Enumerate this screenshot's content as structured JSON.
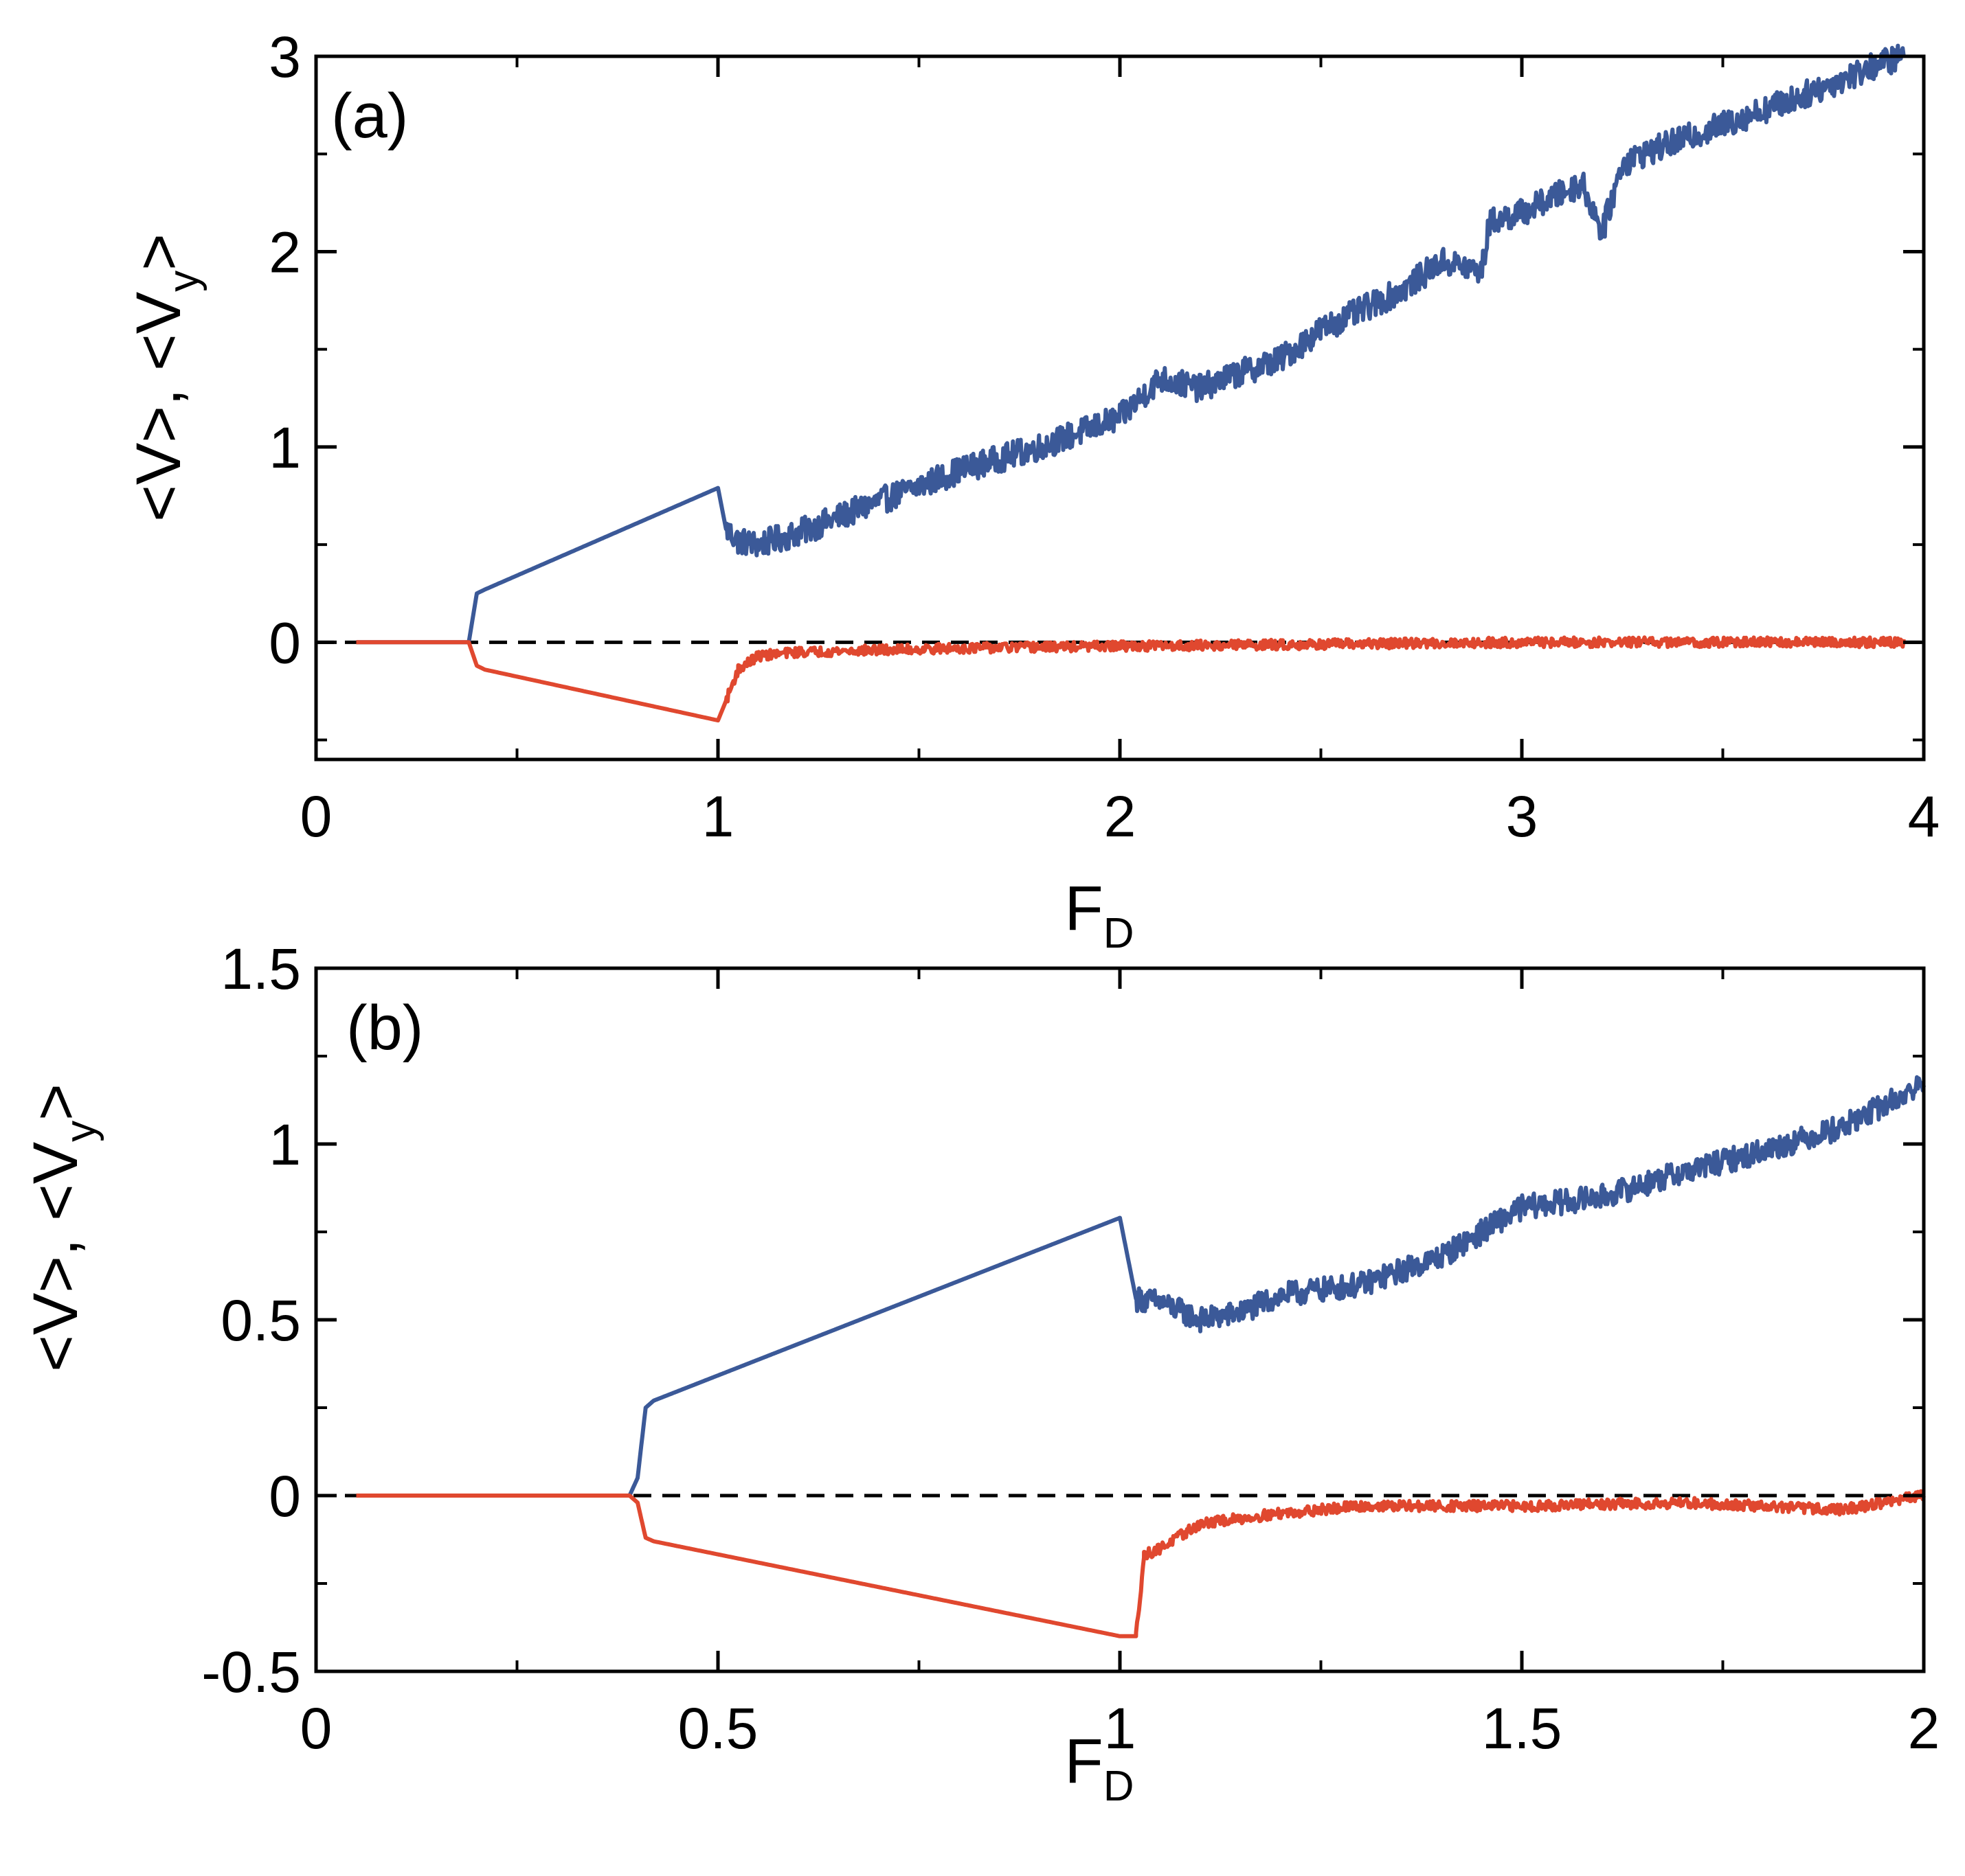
{
  "chart_data": [
    {
      "type": "line",
      "panel_label": "(a)",
      "xlabel": "F",
      "xlabel_sub": "D",
      "ylabel_parts": [
        "<V>, <V",
        "y",
        ">"
      ],
      "xlim": [
        0,
        4
      ],
      "ylim": [
        -0.6,
        3
      ],
      "x_ticks": [
        0,
        1,
        2,
        3,
        4
      ],
      "x_tick_labels": [
        "0",
        "1",
        "2",
        "3",
        "4"
      ],
      "x_minor_ticks": [
        0.5,
        1.5,
        2.5,
        3.5
      ],
      "y_ticks": [
        0,
        1,
        2,
        3
      ],
      "y_tick_labels": [
        "0",
        "1",
        "2",
        "3"
      ],
      "y_minor_ticks": [
        -0.5,
        0.5,
        1.5,
        2.5
      ],
      "reference_line": {
        "y": 0,
        "style": "dashed",
        "color": "#000000"
      },
      "series": [
        {
          "name": "<V>",
          "color": "#3b5998",
          "noisy_from_x": 1.02,
          "noise_amplitude": 0.07,
          "x": [
            0.1,
            0.38,
            0.4,
            0.42,
            1.0,
            1.02,
            1.05,
            1.1,
            1.2,
            1.4,
            1.6,
            1.8,
            2.0,
            2.1,
            2.2,
            2.3,
            2.4,
            2.5,
            2.6,
            2.7,
            2.8,
            2.9,
            2.92,
            3.0,
            3.1,
            3.15,
            3.2,
            3.25,
            3.3,
            3.5,
            3.7,
            3.9,
            3.95
          ],
          "y": [
            0.0,
            0.0,
            0.25,
            0.27,
            0.79,
            0.58,
            0.52,
            0.5,
            0.56,
            0.72,
            0.88,
            1.0,
            1.15,
            1.35,
            1.3,
            1.38,
            1.45,
            1.6,
            1.7,
            1.8,
            1.95,
            1.9,
            2.15,
            2.2,
            2.3,
            2.35,
            2.1,
            2.45,
            2.5,
            2.65,
            2.8,
            2.97,
            3.0
          ]
        },
        {
          "name": "<V_y>",
          "color": "#e0482f",
          "noisy_from_x": 1.02,
          "noise_amplitude": 0.025,
          "x": [
            0.1,
            0.38,
            0.4,
            0.42,
            1.0,
            1.02,
            1.05,
            1.1,
            1.2,
            1.4,
            1.6,
            2.0,
            2.5,
            3.0,
            3.5,
            3.95
          ],
          "y": [
            0.0,
            0.0,
            -0.12,
            -0.14,
            -0.4,
            -0.3,
            -0.14,
            -0.07,
            -0.05,
            -0.04,
            -0.03,
            -0.02,
            -0.01,
            0.0,
            0.0,
            0.0
          ]
        }
      ]
    },
    {
      "type": "line",
      "panel_label": "(b)",
      "xlabel": "F",
      "xlabel_sub": "D",
      "ylabel_parts": [
        "<V>, <V",
        "y",
        ">"
      ],
      "xlim": [
        0,
        2
      ],
      "ylim": [
        -0.5,
        1.5
      ],
      "x_ticks": [
        0,
        0.5,
        1,
        1.5,
        2
      ],
      "x_tick_labels": [
        "0",
        "0.5",
        "1",
        "1.5",
        "2"
      ],
      "x_minor_ticks": [
        0.25,
        0.75,
        1.25,
        1.75
      ],
      "y_ticks": [
        -0.5,
        0,
        0.5,
        1,
        1.5
      ],
      "y_tick_labels": [
        "-0.5",
        "0",
        "0.5",
        "1",
        "1.5"
      ],
      "y_minor_ticks": [
        -0.25,
        0.25,
        0.75,
        1.25
      ],
      "reference_line": {
        "y": 0,
        "style": "dashed",
        "color": "#000000"
      },
      "series": [
        {
          "name": "<V>",
          "color": "#3b5998",
          "noisy_from_x": 1.02,
          "noise_amplitude": 0.035,
          "x": [
            0.05,
            0.39,
            0.4,
            0.41,
            0.42,
            1.0,
            1.02,
            1.05,
            1.1,
            1.15,
            1.2,
            1.3,
            1.4,
            1.45,
            1.5,
            1.6,
            1.7,
            1.8,
            1.9,
            2.0
          ],
          "y": [
            0.0,
            0.0,
            0.05,
            0.25,
            0.27,
            0.79,
            0.56,
            0.55,
            0.5,
            0.52,
            0.57,
            0.6,
            0.68,
            0.75,
            0.82,
            0.85,
            0.92,
            0.98,
            1.05,
            1.17
          ]
        },
        {
          "name": "<V_y>",
          "color": "#e0482f",
          "noisy_from_x": 1.02,
          "noise_amplitude": 0.015,
          "x": [
            0.05,
            0.39,
            0.4,
            0.41,
            0.42,
            1.0,
            1.02,
            1.03,
            1.05,
            1.1,
            1.2,
            1.3,
            1.5,
            1.7,
            1.9,
            2.0
          ],
          "y": [
            0.0,
            0.0,
            -0.02,
            -0.12,
            -0.13,
            -0.4,
            -0.4,
            -0.17,
            -0.15,
            -0.08,
            -0.05,
            -0.03,
            -0.03,
            -0.02,
            -0.04,
            0.0
          ]
        }
      ]
    }
  ]
}
